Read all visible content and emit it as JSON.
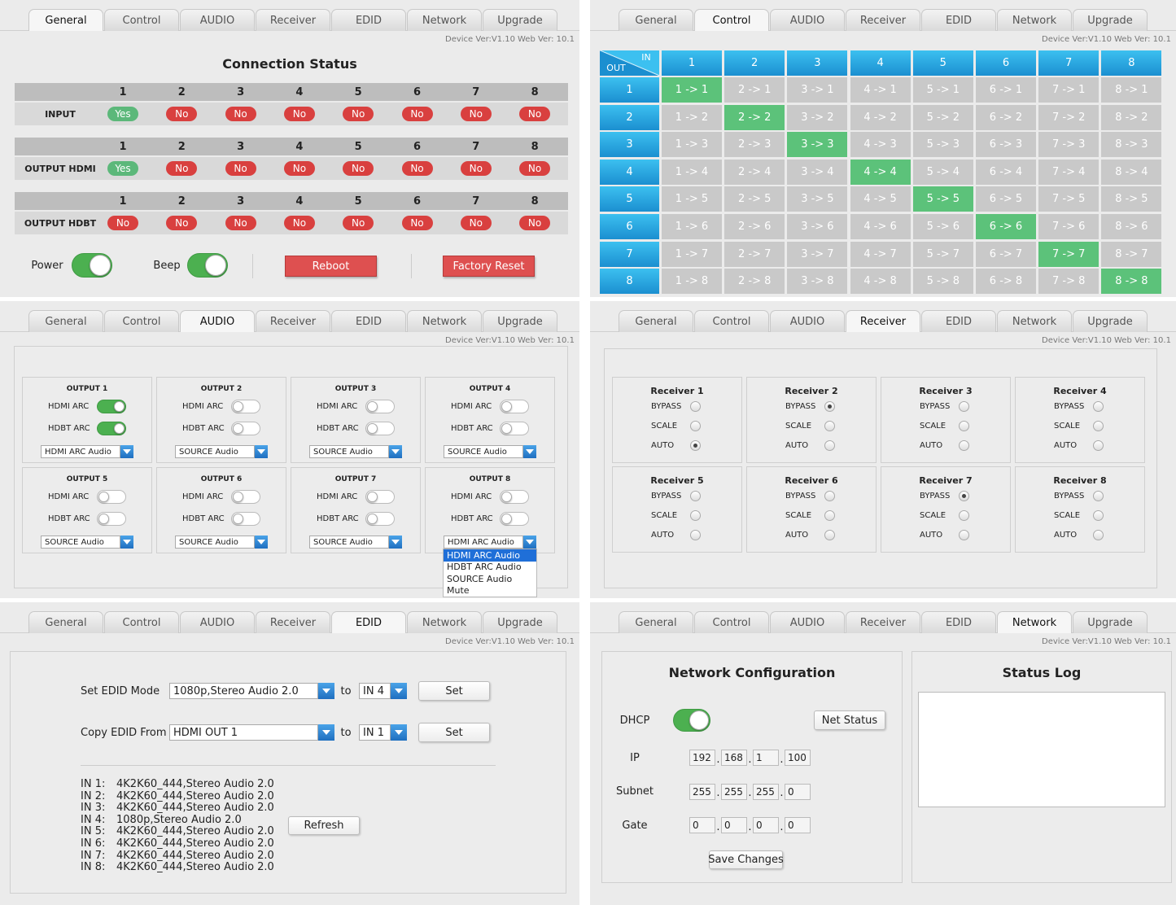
{
  "tabs": [
    "General",
    "Control",
    "AUDIO",
    "Receiver",
    "EDID",
    "Network",
    "Upgrade"
  ],
  "versions": {
    "device": "Device Ver:V1.10",
    "web": "Web Ver: 10.1"
  },
  "general": {
    "active_tab": 0,
    "title": "Connection Status",
    "groups": [
      {
        "label": "INPUT",
        "ports": [
          "1",
          "2",
          "3",
          "4",
          "5",
          "6",
          "7",
          "8"
        ],
        "states": [
          "Yes",
          "No",
          "No",
          "No",
          "No",
          "No",
          "No",
          "No"
        ]
      },
      {
        "label": "OUTPUT HDMI",
        "ports": [
          "1",
          "2",
          "3",
          "4",
          "5",
          "6",
          "7",
          "8"
        ],
        "states": [
          "Yes",
          "No",
          "No",
          "No",
          "No",
          "No",
          "No",
          "No"
        ]
      },
      {
        "label": "OUTPUT HDBT",
        "ports": [
          "1",
          "2",
          "3",
          "4",
          "5",
          "6",
          "7",
          "8"
        ],
        "states": [
          "No",
          "No",
          "No",
          "No",
          "No",
          "No",
          "No",
          "No"
        ]
      }
    ],
    "power_label": "Power",
    "power_on": true,
    "beep_label": "Beep",
    "beep_on": true,
    "buttons": [
      "Reboot",
      "Factory Reset"
    ]
  },
  "control": {
    "active_tab": 1,
    "in_label": "IN",
    "out_label": "OUT",
    "inputs": [
      "1",
      "2",
      "3",
      "4",
      "5",
      "6",
      "7",
      "8"
    ],
    "outputs": [
      "1",
      "2",
      "3",
      "4",
      "5",
      "6",
      "7",
      "8"
    ],
    "cells": [
      [
        "1 -> 1",
        "2 -> 1",
        "3 -> 1",
        "4 -> 1",
        "5 -> 1",
        "6 -> 1",
        "7 -> 1",
        "8 -> 1"
      ],
      [
        "1 -> 2",
        "2 -> 2",
        "3 -> 2",
        "4 -> 2",
        "5 -> 2",
        "6 -> 2",
        "7 -> 2",
        "8 -> 2"
      ],
      [
        "1 -> 3",
        "2 -> 3",
        "3 -> 3",
        "4 -> 3",
        "5 -> 3",
        "6 -> 3",
        "7 -> 3",
        "8 -> 3"
      ],
      [
        "1 -> 4",
        "2 -> 4",
        "3 -> 4",
        "4 -> 4",
        "5 -> 4",
        "6 -> 4",
        "7 -> 4",
        "8 -> 4"
      ],
      [
        "1 -> 5",
        "2 -> 5",
        "3 -> 5",
        "4 -> 5",
        "5 -> 5",
        "6 -> 5",
        "7 -> 5",
        "8 -> 5"
      ],
      [
        "1 -> 6",
        "2 -> 6",
        "3 -> 6",
        "4 -> 6",
        "5 -> 6",
        "6 -> 6",
        "7 -> 6",
        "8 -> 6"
      ],
      [
        "1 -> 7",
        "2 -> 7",
        "3 -> 7",
        "4 -> 7",
        "5 -> 7",
        "6 -> 7",
        "7 -> 7",
        "8 -> 7"
      ],
      [
        "1 -> 8",
        "2 -> 8",
        "3 -> 8",
        "4 -> 8",
        "5 -> 8",
        "6 -> 8",
        "7 -> 8",
        "8 -> 8"
      ]
    ],
    "selected": [
      0,
      1,
      2,
      3,
      4,
      5,
      6,
      7
    ]
  },
  "audio": {
    "active_tab": 2,
    "arc_labels": [
      "HDMI ARC",
      "HDBT ARC"
    ],
    "outputs": [
      {
        "title": "OUTPUT 1",
        "hdmi_arc": true,
        "hdbt_arc": true,
        "audio": "HDMI ARC Audio"
      },
      {
        "title": "OUTPUT 2",
        "hdmi_arc": false,
        "hdbt_arc": false,
        "audio": "SOURCE Audio"
      },
      {
        "title": "OUTPUT 3",
        "hdmi_arc": false,
        "hdbt_arc": false,
        "audio": "SOURCE Audio"
      },
      {
        "title": "OUTPUT 4",
        "hdmi_arc": false,
        "hdbt_arc": false,
        "audio": "SOURCE Audio"
      },
      {
        "title": "OUTPUT 5",
        "hdmi_arc": false,
        "hdbt_arc": false,
        "audio": "SOURCE Audio"
      },
      {
        "title": "OUTPUT 6",
        "hdmi_arc": false,
        "hdbt_arc": false,
        "audio": "SOURCE Audio"
      },
      {
        "title": "OUTPUT 7",
        "hdmi_arc": false,
        "hdbt_arc": false,
        "audio": "SOURCE Audio"
      },
      {
        "title": "OUTPUT 8",
        "hdmi_arc": false,
        "hdbt_arc": false,
        "audio": "HDMI ARC Audio"
      }
    ],
    "options": [
      "HDMI ARC Audio",
      "HDBT ARC Audio",
      "SOURCE Audio",
      "Mute"
    ],
    "open_dropdown": 7
  },
  "receiver": {
    "active_tab": 3,
    "modes": [
      "BYPASS",
      "SCALE",
      "AUTO"
    ],
    "receivers": [
      {
        "title": "Receiver 1",
        "selected": 2
      },
      {
        "title": "Receiver 2",
        "selected": 0
      },
      {
        "title": "Receiver 3",
        "selected": null
      },
      {
        "title": "Receiver 4",
        "selected": null
      },
      {
        "title": "Receiver 5",
        "selected": null
      },
      {
        "title": "Receiver 6",
        "selected": null
      },
      {
        "title": "Receiver 7",
        "selected": 0
      },
      {
        "title": "Receiver 8",
        "selected": null
      }
    ]
  },
  "edid": {
    "active_tab": 4,
    "rows": [
      {
        "label": "Set EDID Mode",
        "select": "1080p,Stereo Audio 2.0",
        "to": "to",
        "target": "IN 4",
        "button": "Set"
      },
      {
        "label": "Copy EDID From",
        "select": "HDMI OUT 1",
        "to": "to",
        "target": "IN 1",
        "button": "Set"
      }
    ],
    "list": [
      {
        "input": "IN 1:",
        "value": "4K2K60_444,Stereo Audio 2.0"
      },
      {
        "input": "IN 2:",
        "value": "4K2K60_444,Stereo Audio 2.0"
      },
      {
        "input": "IN 3:",
        "value": "4K2K60_444,Stereo Audio 2.0"
      },
      {
        "input": "IN 4:",
        "value": "1080p,Stereo Audio 2.0"
      },
      {
        "input": "IN 5:",
        "value": "4K2K60_444,Stereo Audio 2.0"
      },
      {
        "input": "IN 6:",
        "value": "4K2K60_444,Stereo Audio 2.0"
      },
      {
        "input": "IN 7:",
        "value": "4K2K60_444,Stereo Audio 2.0"
      },
      {
        "input": "IN 8:",
        "value": "4K2K60_444,Stereo Audio 2.0"
      }
    ],
    "refresh": "Refresh"
  },
  "network": {
    "active_tab": 5,
    "title": "Network Configuration",
    "dhcp_label": "DHCP",
    "dhcp_on": true,
    "net_status": "Net Status",
    "octet_separator": ".",
    "fields": [
      {
        "label": "IP",
        "octets": [
          "192",
          "168",
          "1",
          "100"
        ]
      },
      {
        "label": "Subnet",
        "octets": [
          "255",
          "255",
          "255",
          "0"
        ]
      },
      {
        "label": "Gate",
        "octets": [
          "0",
          "0",
          "0",
          "0"
        ]
      }
    ],
    "save": "Save Changes",
    "log_title": "Status Log"
  }
}
